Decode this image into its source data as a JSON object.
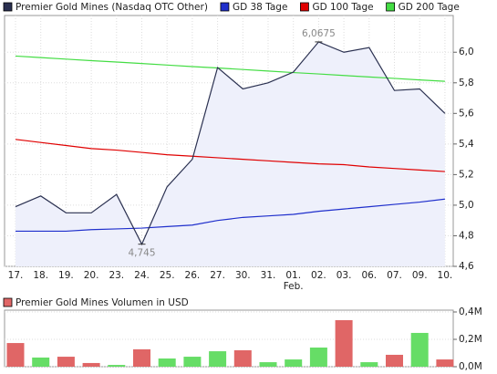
{
  "chart_data": [
    {
      "type": "line",
      "categories": [
        "17.",
        "18.",
        "19.",
        "20.",
        "23.",
        "24.",
        "25.",
        "26.",
        "27.",
        "30.",
        "31.",
        "01.",
        "02.",
        "03.",
        "06.",
        "07.",
        "09.",
        "10."
      ],
      "month_labels": [
        null,
        null,
        null,
        null,
        null,
        null,
        null,
        null,
        null,
        null,
        null,
        "Feb.",
        null,
        null,
        null,
        null,
        null,
        null
      ],
      "series": [
        {
          "name": "Premier Gold Mines (Nasdaq OTC Other)",
          "color": "#2a3050",
          "fill": "#eef0fb",
          "values": [
            4.99,
            5.06,
            4.95,
            4.95,
            5.07,
            4.745,
            5.12,
            5.3,
            5.9,
            5.76,
            5.8,
            5.87,
            6.0675,
            6.0,
            6.03,
            5.75,
            5.76,
            5.6
          ],
          "value_labels": [
            null,
            null,
            null,
            null,
            null,
            "4,745",
            null,
            null,
            null,
            null,
            null,
            null,
            "6,0675",
            null,
            null,
            null,
            null,
            null
          ]
        },
        {
          "name": "GD 38 Tage",
          "color": "#1f2fcc",
          "values": [
            4.83,
            4.83,
            4.83,
            4.84,
            4.845,
            4.85,
            4.86,
            4.87,
            4.9,
            4.92,
            4.93,
            4.94,
            4.96,
            4.975,
            4.99,
            5.005,
            5.02,
            5.04
          ]
        },
        {
          "name": "GD 100 Tage",
          "color": "#e00000",
          "values": [
            5.43,
            5.41,
            5.39,
            5.37,
            5.36,
            5.345,
            5.33,
            5.32,
            5.31,
            5.3,
            5.29,
            5.28,
            5.27,
            5.265,
            5.25,
            5.24,
            5.23,
            5.22
          ]
        },
        {
          "name": "GD 200 Tage",
          "color": "#44dd44",
          "values": [
            5.975,
            5.965,
            5.955,
            5.945,
            5.936,
            5.926,
            5.916,
            5.906,
            5.897,
            5.887,
            5.877,
            5.867,
            5.858,
            5.848,
            5.838,
            5.829,
            5.819,
            5.81
          ]
        }
      ],
      "ylim": [
        4.6,
        6.24
      ],
      "yticks": [
        {
          "value": 4.6,
          "label": "4,6"
        },
        {
          "value": 4.8,
          "label": "4,8"
        },
        {
          "value": 5.0,
          "label": "5,0"
        },
        {
          "value": 5.2,
          "label": "5,2"
        },
        {
          "value": 5.4,
          "label": "5,4"
        },
        {
          "value": 5.6,
          "label": "5,6"
        },
        {
          "value": 5.8,
          "label": "5,8"
        },
        {
          "value": 6.0,
          "label": "6,0"
        }
      ],
      "grid": true
    },
    {
      "type": "bar",
      "title": "Premier Gold Mines Volumen in USD",
      "title_color": "#e06666",
      "values": [
        0.173,
        0.067,
        0.073,
        0.027,
        0.013,
        0.127,
        0.06,
        0.073,
        0.113,
        0.12,
        0.033,
        0.053,
        0.14,
        0.34,
        0.033,
        0.087,
        0.247,
        0.053
      ],
      "colors": [
        "#e06666",
        "#66dd66",
        "#e06666",
        "#e06666",
        "#66dd66",
        "#e06666",
        "#66dd66",
        "#66dd66",
        "#66dd66",
        "#e06666",
        "#66dd66",
        "#66dd66",
        "#66dd66",
        "#e06666",
        "#66dd66",
        "#e06666",
        "#66dd66",
        "#e06666"
      ],
      "ylim": [
        0,
        0.4
      ],
      "yticks": [
        {
          "value": 0,
          "label": "0,0M"
        },
        {
          "value": 0.2,
          "label": "0,2M"
        },
        {
          "value": 0.4,
          "label": "0,4M"
        }
      ],
      "grid": true
    }
  ]
}
